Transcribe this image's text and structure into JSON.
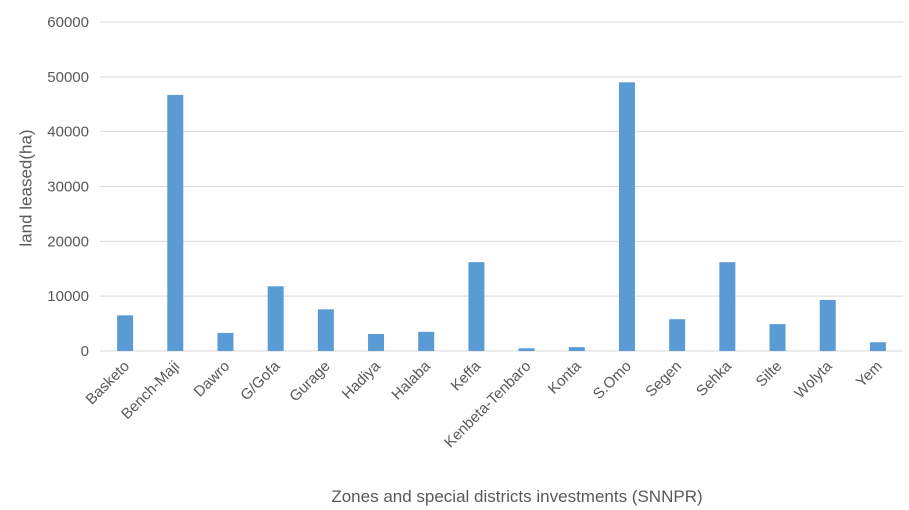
{
  "chart_data": {
    "type": "bar",
    "title": "",
    "xlabel": "Zones and special districts investments (SNNPR)",
    "ylabel": "land leased(ha)",
    "ylim": [
      0,
      60000
    ],
    "yticks": [
      "0",
      "10000",
      "20000",
      "30000",
      "40000",
      "50000",
      "60000"
    ],
    "grid": true,
    "legend": "none",
    "bar_color": "#5b9bd5",
    "categories": [
      "Basketo",
      "Bench-Maji",
      "Dawro",
      "G/Gofa",
      "Gurage",
      "Hadiya",
      "Halaba",
      "Keffa",
      "Kenbeta-Tenbaro",
      "Konta",
      "S.Omo",
      "Segen",
      "Sehka",
      "Silte",
      "Wolyta",
      "Yem"
    ],
    "values": [
      6500,
      46700,
      3300,
      11800,
      7600,
      3100,
      3500,
      16200,
      500,
      700,
      49000,
      5800,
      16200,
      4900,
      9300,
      1600
    ]
  }
}
